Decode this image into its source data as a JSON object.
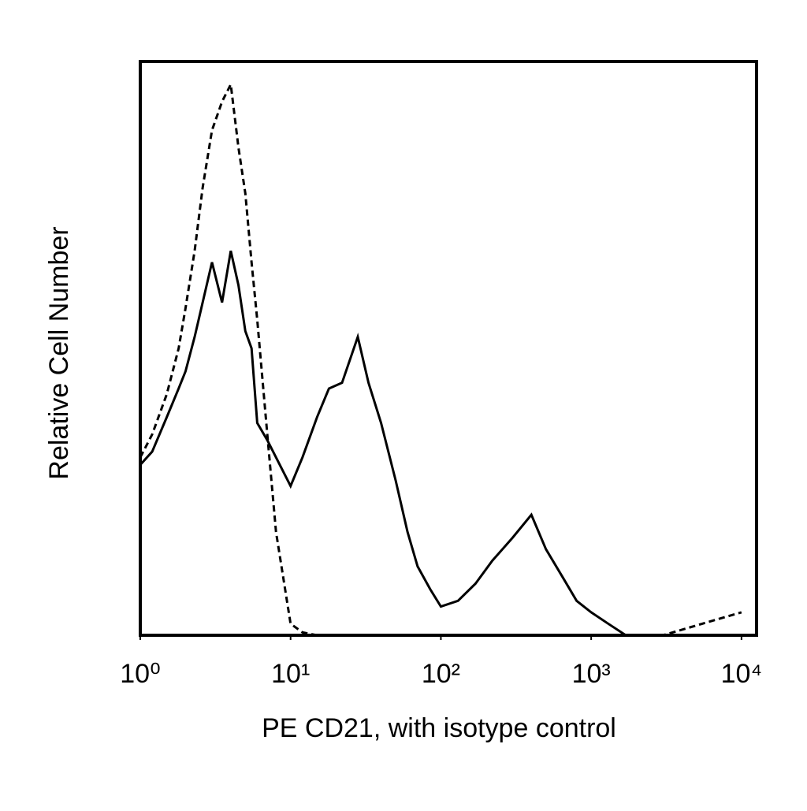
{
  "chart_data": {
    "type": "line",
    "xlabel": "PE CD21, with isotype control",
    "ylabel": "Relative Cell Number",
    "xscale": "log",
    "x": [
      1,
      1.2,
      1.5,
      1.8,
      2,
      2.3,
      2.6,
      3,
      3.5,
      4,
      4.5,
      5,
      5.5,
      6,
      7,
      8,
      10,
      12,
      15,
      18,
      22,
      28,
      33,
      40,
      50,
      60,
      70,
      85,
      100,
      130,
      170,
      220,
      300,
      400,
      500,
      650,
      800,
      1000,
      1300,
      1700,
      3000,
      10000
    ],
    "series": [
      {
        "color": "#000000",
        "dash": "solid",
        "values": [
          29.7,
          32,
          38,
          43,
          46,
          52,
          58,
          65,
          58,
          67,
          61,
          53,
          50,
          37,
          34,
          31,
          26,
          31,
          38,
          43,
          44,
          52,
          44,
          37,
          27,
          18,
          12,
          8,
          5,
          6,
          9,
          13,
          17,
          21,
          15,
          10,
          6,
          4,
          2,
          0,
          0,
          0
        ]
      },
      {
        "color": "#000000",
        "dash": "dashed",
        "values": [
          31,
          35,
          42,
          50,
          57,
          67,
          78,
          88,
          93,
          96,
          85,
          77,
          65,
          55,
          35,
          18,
          2,
          0.5,
          0,
          0,
          0,
          0,
          0,
          0,
          0,
          0,
          0,
          0,
          0,
          0,
          0,
          0,
          0,
          0,
          0,
          0,
          0,
          0,
          0,
          0,
          0,
          4
        ]
      }
    ],
    "xlim": [
      1,
      12600
    ],
    "ylim": [
      0,
      100
    ],
    "xticks": [
      {
        "value": 1,
        "label": "10⁰"
      },
      {
        "value": 10,
        "label": "10¹"
      },
      {
        "value": 100,
        "label": "10²"
      },
      {
        "value": 1000,
        "label": "10³"
      },
      {
        "value": 10000,
        "label": "10⁴"
      }
    ],
    "grid": false
  }
}
